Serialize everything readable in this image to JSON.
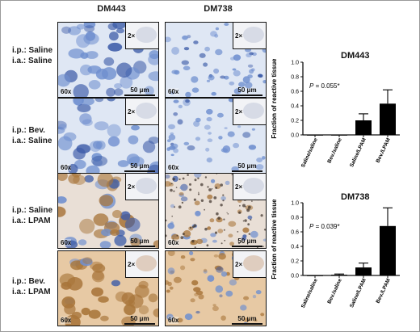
{
  "columns": [
    "DM443",
    "DM738"
  ],
  "rows": [
    {
      "line1": "i.p.: Saline",
      "line2": "i.a.: Saline"
    },
    {
      "line1": "i.p.: Bev.",
      "line2": "i.a.: Saline"
    },
    {
      "line1": "i.p.: Saline",
      "line2": "i.a.: LPAM"
    },
    {
      "line1": "i.p.: Bev.",
      "line2": "i.a.: LPAM"
    }
  ],
  "panel_text": {
    "magnification": "60x",
    "inset_magnification": "2×",
    "scalebar": "50 μm"
  },
  "stain_colors": {
    "hematoxylin": "#6f8fcf",
    "hematoxylin_dark": "#3d5ca8",
    "dab": "#a8753a",
    "background": "#dfe7f4"
  },
  "chart_data": [
    {
      "type": "bar",
      "title": "DM443",
      "ylabel": "Fraction of reactive tissue",
      "categories": [
        "Saline/saline",
        "Bev./saline",
        "Saline/LPAM",
        "Bev./LPAM"
      ],
      "values": [
        0.0,
        0.0,
        0.2,
        0.43
      ],
      "errors": [
        0.0,
        0.0,
        0.09,
        0.19
      ],
      "ylim": [
        0,
        1.0
      ],
      "yticks": [
        "0.0",
        "0.2",
        "0.4",
        "0.6",
        "0.8",
        "1.0"
      ],
      "p_label": "P",
      "p_value": " = 0.055*"
    },
    {
      "type": "bar",
      "title": "DM738",
      "ylabel": "Fraction of reactive tissue",
      "categories": [
        "Saline/saline",
        "Bev./saline",
        "Saline/LPAM",
        "Bev./LPAM"
      ],
      "values": [
        0.0,
        0.01,
        0.11,
        0.68
      ],
      "errors": [
        0.0,
        0.01,
        0.06,
        0.25
      ],
      "ylim": [
        0,
        1.0
      ],
      "yticks": [
        "0.0",
        "0.2",
        "0.4",
        "0.6",
        "0.8",
        "1.0"
      ],
      "p_label": "P",
      "p_value": " = 0.039*"
    }
  ]
}
